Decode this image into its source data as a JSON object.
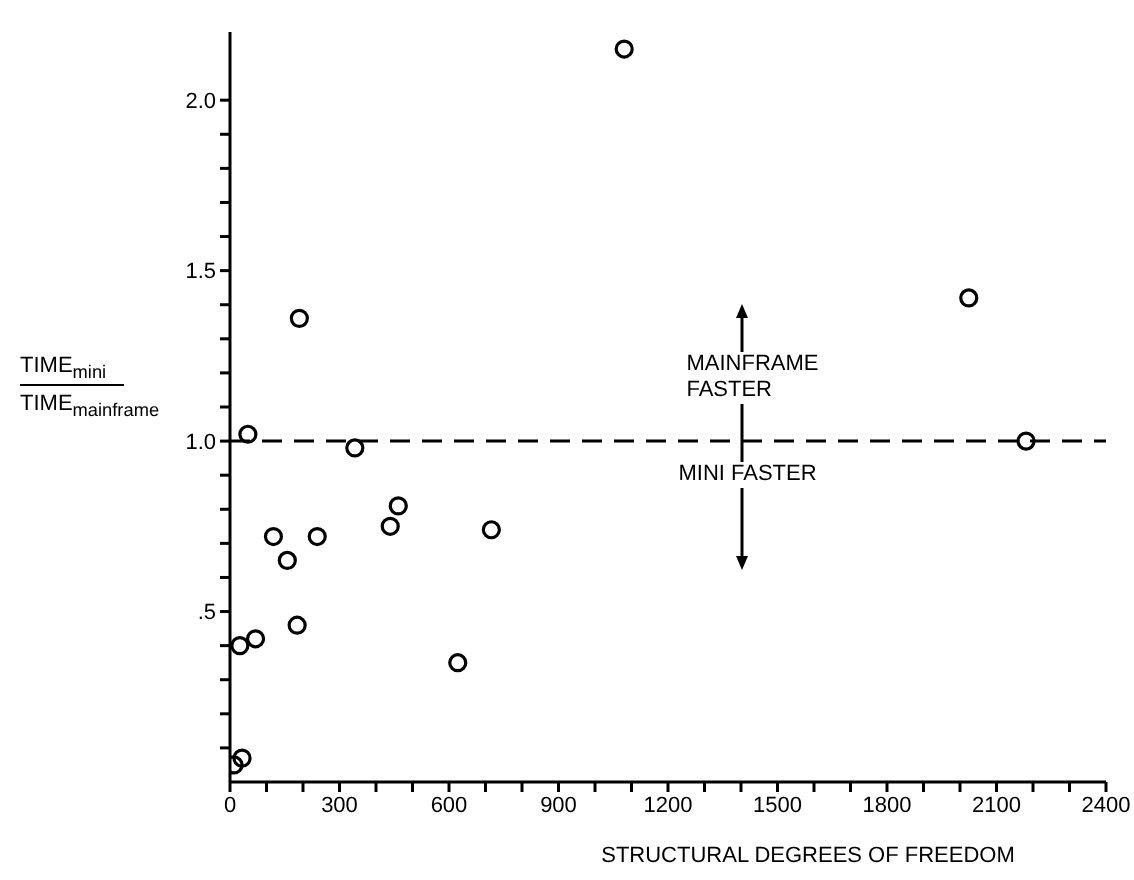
{
  "chart_data": {
    "type": "scatter",
    "xlabel": "STRUCTURAL DEGREES OF FREEDOM",
    "ylabel": "TIME$_{mini}$ TIME$_{mainframe}$",
    "series": [
      {
        "color": "#000000",
        "x": [
          190,
          49,
          342,
          119,
          239,
          157,
          439,
          461,
          716,
          184,
          70,
          27,
          624,
          33,
          11,
          1080,
          2024,
          2181
        ],
        "values": [
          1.36,
          1.02,
          0.98,
          0.72,
          0.72,
          0.65,
          0.75,
          0.81,
          0.74,
          0.46,
          0.42,
          0.4,
          0.35,
          0.07,
          0.05,
          2.15,
          1.42,
          1.0
        ]
      }
    ],
    "xlim": [
      0,
      2400
    ],
    "xticks": [
      0,
      {
        "value": 100,
        "label": null
      },
      {
        "value": 200,
        "label": null
      },
      300,
      {
        "value": 400,
        "label": null
      },
      {
        "value": 500,
        "label": null
      },
      600,
      {
        "value": 700,
        "label": null
      },
      {
        "value": 800,
        "label": null
      },
      900,
      {
        "value": 1000,
        "label": null
      },
      {
        "value": 1100,
        "label": null
      },
      1200,
      {
        "value": 1300,
        "label": null
      },
      {
        "value": 1400,
        "label": null
      },
      1500,
      {
        "value": 1600,
        "label": null
      },
      {
        "value": 1700,
        "label": null
      },
      1800,
      {
        "value": 1900,
        "label": null
      },
      {
        "value": 2000,
        "label": null
      },
      2100,
      {
        "value": 2200,
        "label": null
      },
      {
        "value": 2300,
        "label": null
      },
      2400
    ],
    "ylim": [
      0,
      2.2
    ],
    "yticks": [
      {
        "value": 0.1,
        "label": null
      },
      {
        "value": 0.2,
        "label": null
      },
      {
        "value": 0.3,
        "label": null
      },
      {
        "value": 0.4,
        "label": null
      },
      {
        "value": 0.5,
        "label": ".5"
      },
      {
        "value": 0.6,
        "label": null
      },
      {
        "value": 0.7,
        "label": null
      },
      {
        "value": 0.8,
        "label": null
      },
      {
        "value": 0.9,
        "label": null
      },
      {
        "value": 1,
        "label": "1.0"
      },
      {
        "value": 1.1,
        "label": null
      },
      {
        "value": 1.2,
        "label": null
      },
      {
        "value": 1.3,
        "label": null
      },
      {
        "value": 1.4,
        "label": null
      },
      {
        "value": 1.5,
        "label": "1.5"
      },
      {
        "value": 1.6,
        "label": null
      },
      {
        "value": 1.7,
        "label": null
      },
      {
        "value": 1.8,
        "label": null
      },
      {
        "value": 1.9,
        "label": null
      },
      {
        "value": 2,
        "label": "2.0"
      }
    ],
    "ref_lines": [
      {
        "axis": "y",
        "value": 1,
        "line_style": "dashed",
        "color": "#000000"
      }
    ],
    "annotations": [
      "MAINFRAME FASTER",
      "MINI FASTER"
    ],
    "marker": "circle",
    "grid": false,
    "legend": false
  }
}
